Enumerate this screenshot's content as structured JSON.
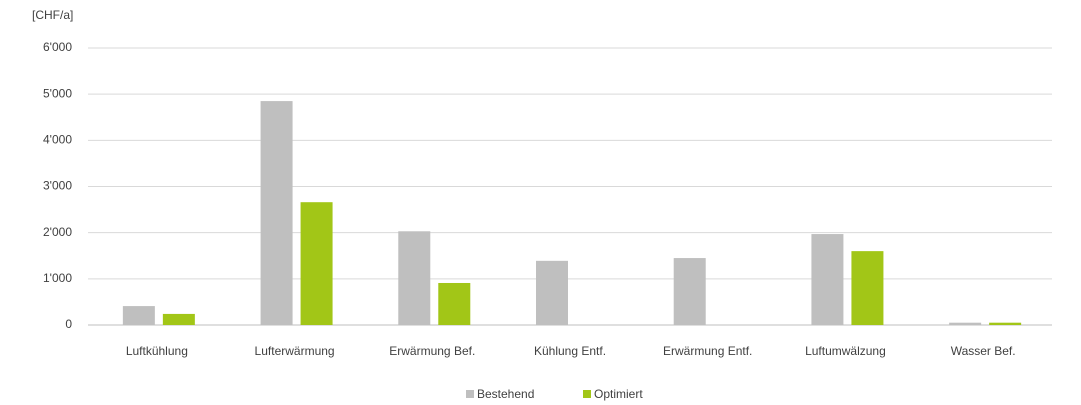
{
  "chart_data": {
    "type": "bar",
    "y_label": "[CHF/a]",
    "categories": [
      "Luftkühlung",
      "Lufterwärmung",
      "Erwärmung Bef.",
      "Kühlung Entf.",
      "Erwärmung Entf.",
      "Luftumwälzung",
      "Wasser Bef."
    ],
    "series": [
      {
        "name": "Bestehend",
        "color": "#bfbfbf",
        "values": [
          410,
          4850,
          2030,
          1390,
          1450,
          1970,
          50
        ]
      },
      {
        "name": "Optimiert",
        "color": "#a2c617",
        "values": [
          240,
          2660,
          910,
          0,
          0,
          1600,
          50
        ]
      }
    ],
    "ylim": [
      0,
      6000
    ],
    "yticks": [
      0,
      {
        "value": 1000,
        "label": "1'000"
      },
      {
        "value": 2000,
        "label": "2'000"
      },
      {
        "value": 3000,
        "label": "3'000"
      },
      {
        "value": 4000,
        "label": "4'000"
      },
      {
        "value": 5000,
        "label": "5'000"
      },
      {
        "value": 6000,
        "label": "6'000"
      }
    ],
    "grid": true,
    "legend": "bottom"
  }
}
